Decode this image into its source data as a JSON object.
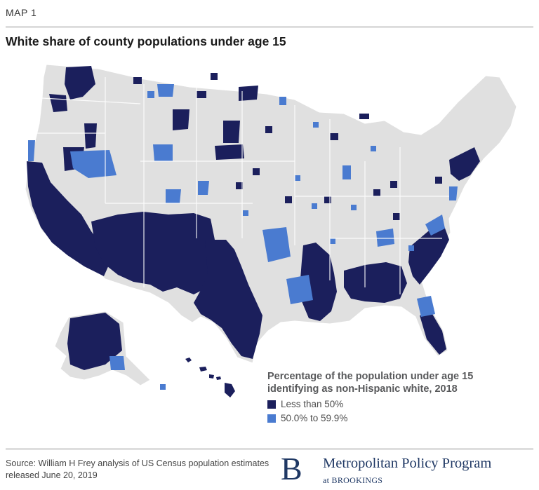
{
  "header": {
    "map_label": "MAP 1",
    "title": "White share of county populations under age 15"
  },
  "legend": {
    "title": "Percentage of the population under age 15 identifying as non-Hispanic white, 2018",
    "items": [
      {
        "label": "Less than 50%",
        "color": "#1b1f5c"
      },
      {
        "label": "50.0% to 59.9%",
        "color": "#4a7bd0"
      }
    ]
  },
  "map": {
    "base_color": "#e0e0e0",
    "border_color": "#ffffff"
  },
  "footer": {
    "source": "Source: William H Frey analysis of US Census population estimates released June 20, 2019",
    "logo_letter": "B",
    "logo_name": "Metropolitan Policy Program",
    "logo_sub": "at BROOKINGS"
  }
}
